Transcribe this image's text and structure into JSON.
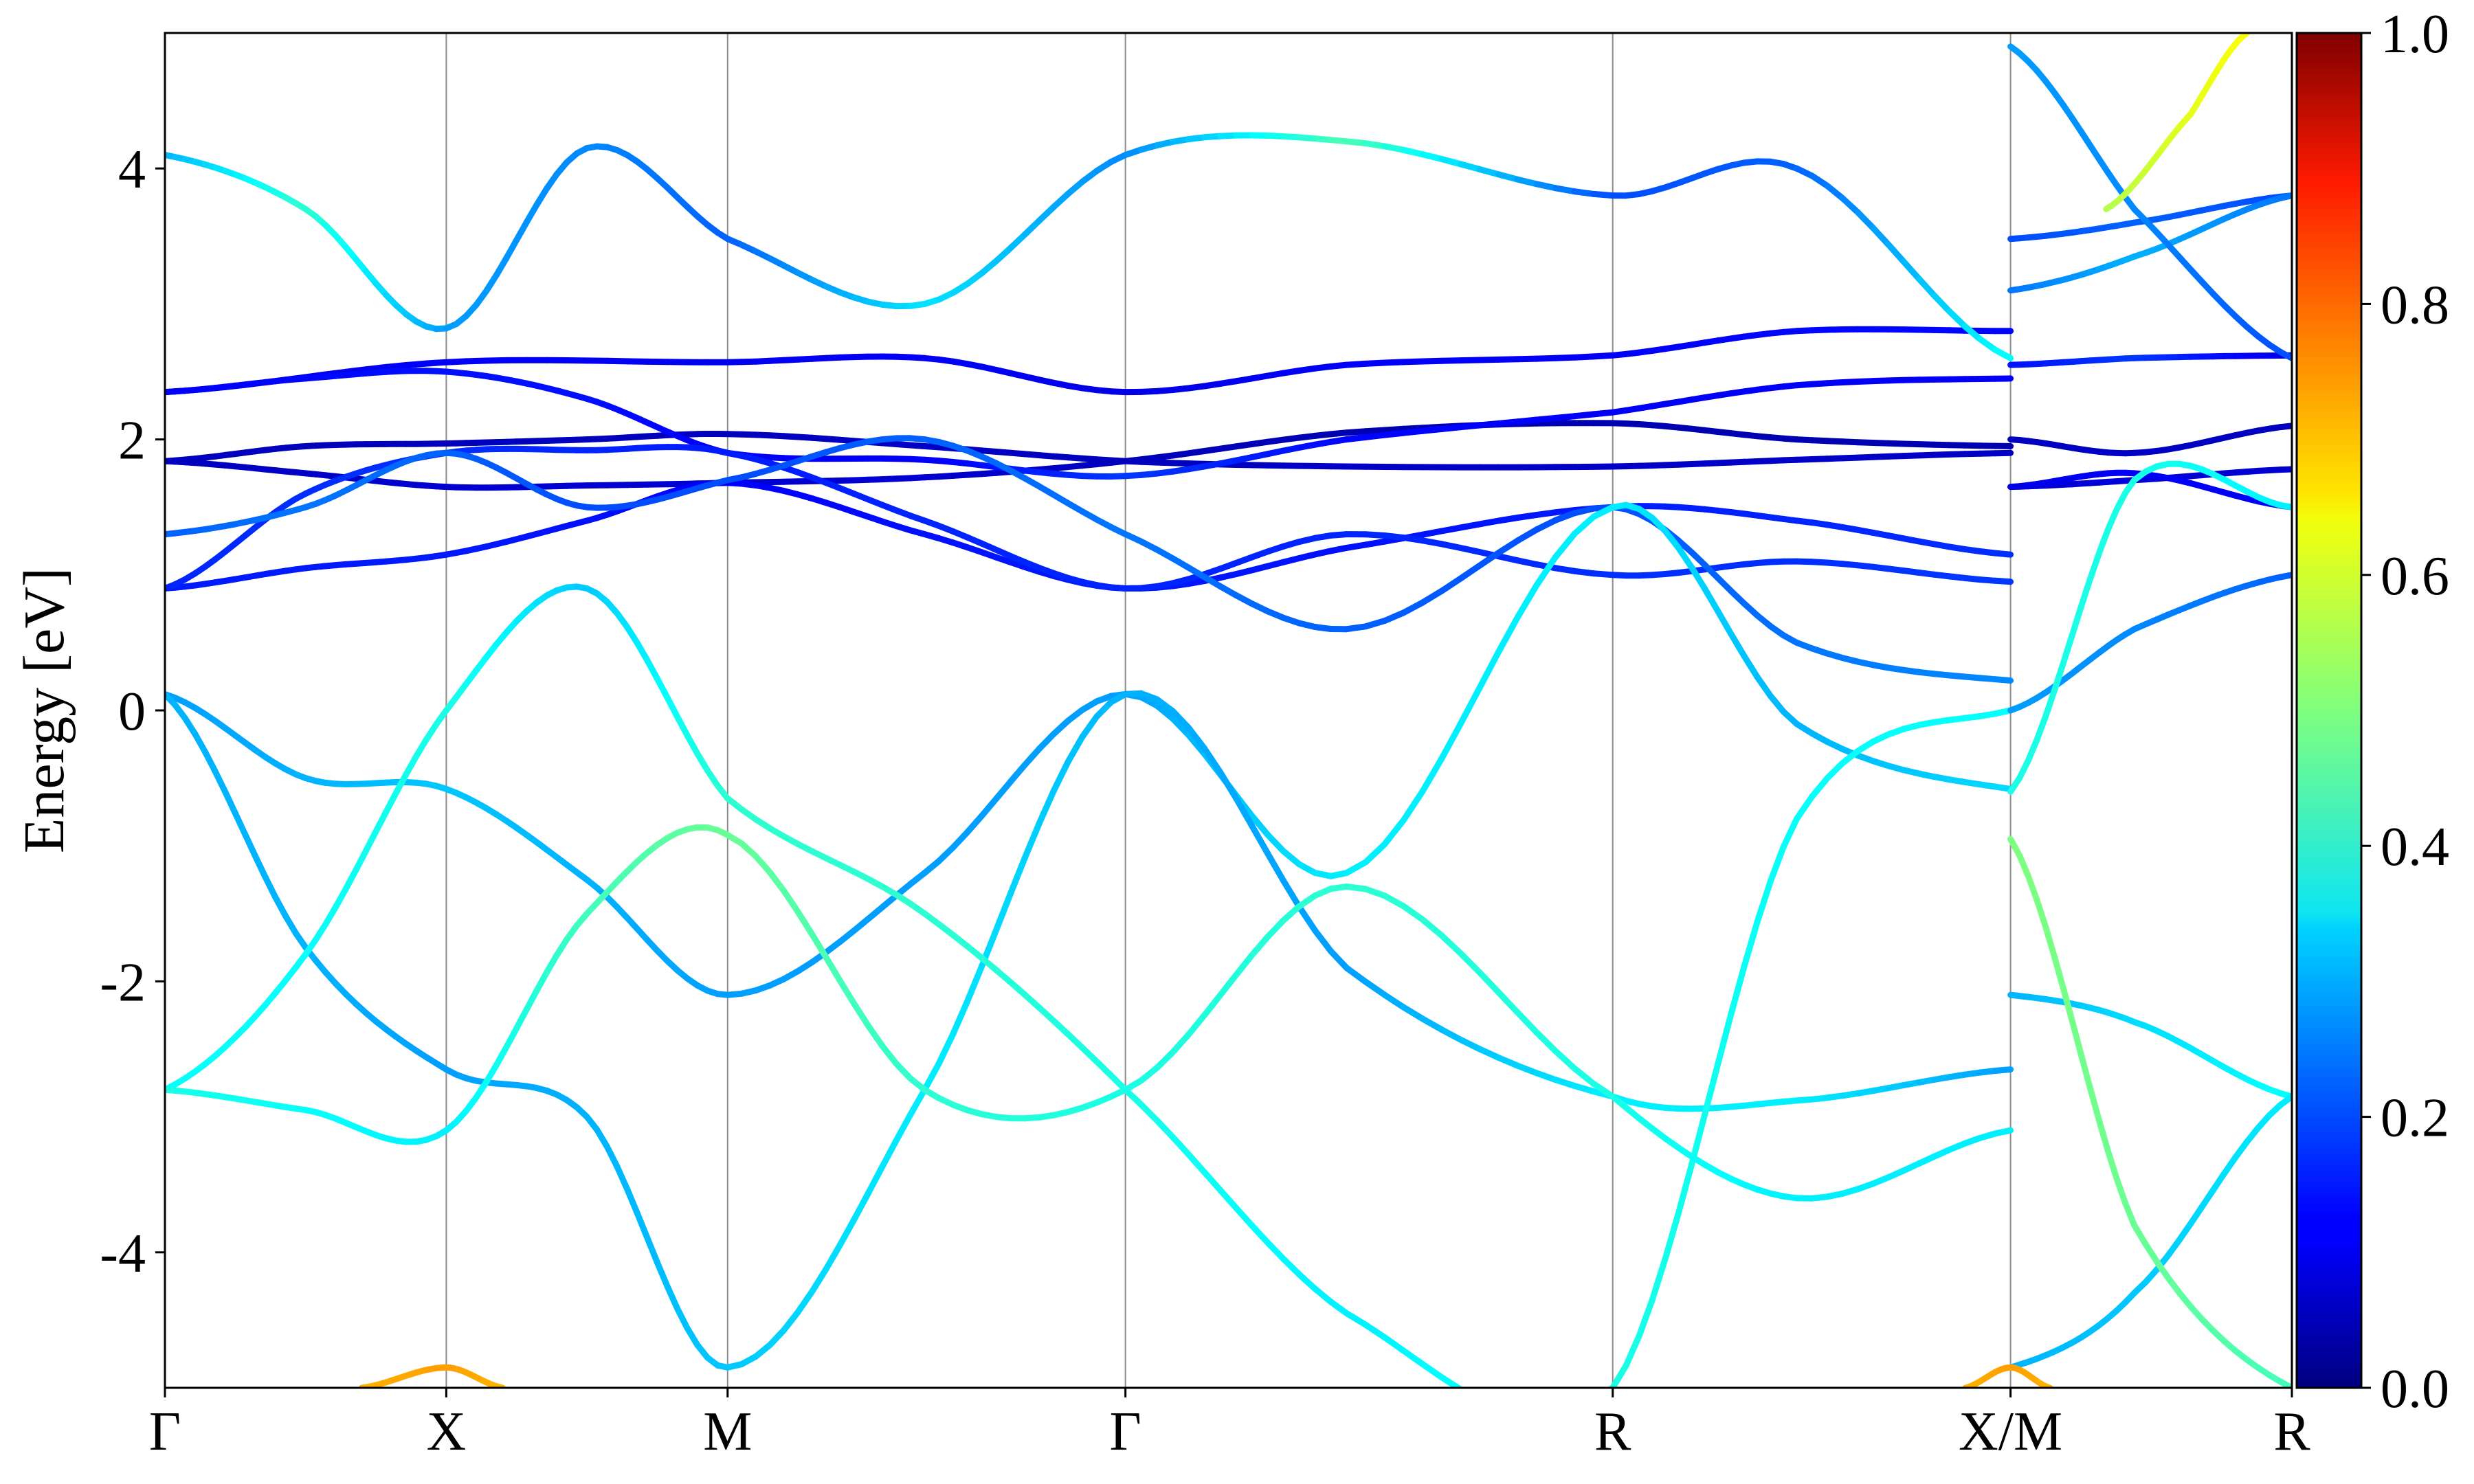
{
  "chart_data": {
    "type": "line",
    "subtype": "electronic band structure with color-mapped projection weight",
    "title": "",
    "xlabel": "",
    "ylabel": "Energy [eV]",
    "ylim": [
      -5,
      5
    ],
    "yticks": [
      -4,
      -2,
      0,
      2,
      4
    ],
    "xticks": [
      {
        "label": "Γ",
        "x": 0.0
      },
      {
        "label": "X",
        "x": 0.5
      },
      {
        "label": "M",
        "x": 1.0
      },
      {
        "label": "Γ",
        "x": 1.707
      },
      {
        "label": "R",
        "x": 2.573
      },
      {
        "label": "X/M",
        "x": 3.28
      },
      {
        "label": "R",
        "x": 3.78
      }
    ],
    "xlim": [
      0,
      3.78
    ],
    "grid": "vertical lines at high-symmetry points",
    "colorbar": {
      "colormap": "jet",
      "range": [
        0.0,
        1.0
      ],
      "ticks": [
        "0.0",
        "0.2",
        "0.4",
        "0.6",
        "0.8",
        "1.0"
      ]
    },
    "series": [
      {
        "points": [
          [
            0,
            1.84,
            0.06
          ],
          [
            0.25,
            1.75,
            0.07
          ],
          [
            0.5,
            1.65,
            0.08
          ],
          [
            0.75,
            1.66,
            0.08
          ],
          [
            1.0,
            1.68,
            0.08
          ],
          [
            1.35,
            1.72,
            0.08
          ],
          [
            1.707,
            1.84,
            0.06
          ],
          [
            2.1,
            2.05,
            0.05
          ],
          [
            2.573,
            2.12,
            0.05
          ],
          [
            2.9,
            2.0,
            0.05
          ],
          [
            3.28,
            1.95,
            0.05
          ]
        ]
      },
      {
        "points": [
          [
            0,
            1.84,
            0.06
          ],
          [
            0.25,
            1.95,
            0.06
          ],
          [
            0.5,
            1.97,
            0.06
          ],
          [
            0.75,
            2.0,
            0.06
          ],
          [
            1.0,
            2.04,
            0.06
          ],
          [
            1.35,
            1.95,
            0.07
          ],
          [
            1.707,
            1.84,
            0.06
          ],
          [
            2.1,
            1.8,
            0.07
          ],
          [
            2.573,
            1.8,
            0.07
          ],
          [
            2.9,
            1.85,
            0.07
          ],
          [
            3.28,
            1.9,
            0.07
          ]
        ]
      },
      {
        "points": [
          [
            0,
            2.35,
            0.1
          ],
          [
            0.5,
            2.57,
            0.12
          ],
          [
            1.0,
            2.57,
            0.11
          ],
          [
            1.35,
            2.6,
            0.12
          ],
          [
            1.707,
            2.35,
            0.1
          ],
          [
            2.1,
            2.55,
            0.12
          ],
          [
            2.573,
            2.62,
            0.12
          ],
          [
            2.9,
            2.8,
            0.13
          ],
          [
            3.28,
            2.8,
            0.13
          ]
        ]
      },
      {
        "points": [
          [
            0,
            2.35,
            0.12
          ],
          [
            0.25,
            2.45,
            0.13
          ],
          [
            0.5,
            2.5,
            0.14
          ],
          [
            0.75,
            2.3,
            0.14
          ],
          [
            1.0,
            1.9,
            0.12
          ],
          [
            1.35,
            1.85,
            0.12
          ],
          [
            1.707,
            1.73,
            0.18
          ],
          [
            2.1,
            2.0,
            0.13
          ],
          [
            2.573,
            2.2,
            0.12
          ],
          [
            2.9,
            2.4,
            0.12
          ],
          [
            3.28,
            2.45,
            0.12
          ]
        ]
      },
      {
        "points": [
          [
            0,
            0.9,
            0.15
          ],
          [
            0.25,
            1.05,
            0.15
          ],
          [
            0.5,
            1.15,
            0.15
          ],
          [
            0.75,
            1.4,
            0.14
          ],
          [
            1.0,
            1.68,
            0.12
          ],
          [
            1.35,
            1.3,
            0.14
          ],
          [
            1.707,
            0.9,
            0.15
          ],
          [
            2.1,
            1.2,
            0.14
          ],
          [
            2.573,
            1.5,
            0.15
          ],
          [
            2.9,
            1.4,
            0.16
          ],
          [
            3.28,
            1.15,
            0.17
          ]
        ]
      },
      {
        "points": [
          [
            0,
            0.9,
            0.16
          ],
          [
            0.25,
            1.6,
            0.17
          ],
          [
            0.5,
            1.9,
            0.17
          ],
          [
            0.75,
            1.92,
            0.16
          ],
          [
            1.0,
            1.9,
            0.15
          ],
          [
            1.35,
            1.4,
            0.16
          ],
          [
            1.707,
            0.9,
            0.16
          ],
          [
            2.1,
            1.3,
            0.16
          ],
          [
            2.573,
            1.0,
            0.17
          ],
          [
            2.9,
            1.1,
            0.17
          ],
          [
            3.28,
            0.95,
            0.18
          ]
        ]
      },
      {
        "points": [
          [
            0,
            1.3,
            0.22
          ],
          [
            0.25,
            1.5,
            0.24
          ],
          [
            0.5,
            1.9,
            0.22
          ],
          [
            0.75,
            1.5,
            0.2
          ],
          [
            1.0,
            1.7,
            0.2
          ],
          [
            1.35,
            2.0,
            0.22
          ],
          [
            1.707,
            1.3,
            0.24
          ],
          [
            2.1,
            0.6,
            0.22
          ],
          [
            2.573,
            1.5,
            0.2
          ],
          [
            2.9,
            0.5,
            0.24
          ],
          [
            3.28,
            0.22,
            0.26
          ]
        ]
      },
      {
        "points": [
          [
            0,
            0.12,
            0.28
          ],
          [
            0.25,
            -0.5,
            0.3
          ],
          [
            0.5,
            -0.58,
            0.32
          ],
          [
            0.75,
            -1.25,
            0.3
          ],
          [
            1.0,
            -2.1,
            0.28
          ],
          [
            1.35,
            -1.2,
            0.28
          ],
          [
            1.707,
            0.12,
            0.28
          ],
          [
            2.1,
            -1.2,
            0.36
          ],
          [
            2.573,
            1.5,
            0.36
          ],
          [
            2.9,
            -0.1,
            0.3
          ],
          [
            3.28,
            -0.58,
            0.34
          ]
        ]
      },
      {
        "points": [
          [
            0,
            0.12,
            0.3
          ],
          [
            0.25,
            -1.75,
            0.3
          ],
          [
            0.5,
            -2.65,
            0.28
          ],
          [
            0.75,
            -3.0,
            0.3
          ],
          [
            1.0,
            -4.85,
            0.32
          ],
          [
            1.35,
            -2.8,
            0.36
          ],
          [
            1.707,
            0.12,
            0.3
          ],
          [
            2.1,
            -1.9,
            0.28
          ],
          [
            2.573,
            -2.85,
            0.36
          ],
          [
            2.9,
            -2.88,
            0.36
          ],
          [
            3.28,
            -2.65,
            0.28
          ]
        ]
      },
      {
        "points": [
          [
            0,
            -2.8,
            0.38
          ],
          [
            0.25,
            -1.8,
            0.38
          ],
          [
            0.5,
            0.0,
            0.4
          ],
          [
            0.75,
            0.9,
            0.32
          ],
          [
            1.0,
            -0.65,
            0.42
          ],
          [
            1.35,
            -1.5,
            0.42
          ],
          [
            1.707,
            -2.8,
            0.4
          ],
          [
            2.1,
            -4.45,
            0.36
          ],
          [
            2.573,
            -5.0,
            0.4
          ],
          [
            2.9,
            -0.8,
            0.38
          ],
          [
            3.28,
            0.0,
            0.38
          ]
        ]
      },
      {
        "points": [
          [
            0,
            -2.8,
            0.4
          ],
          [
            0.25,
            -2.95,
            0.38
          ],
          [
            0.5,
            -3.1,
            0.36
          ],
          [
            0.75,
            -1.5,
            0.44
          ],
          [
            1.0,
            -0.92,
            0.48
          ],
          [
            1.35,
            -2.8,
            0.42
          ],
          [
            1.707,
            -2.8,
            0.4
          ],
          [
            2.1,
            -1.3,
            0.42
          ],
          [
            2.573,
            -2.85,
            0.4
          ],
          [
            2.9,
            -3.6,
            0.36
          ],
          [
            3.28,
            -3.1,
            0.36
          ]
        ]
      },
      {
        "points": [
          [
            0,
            4.1,
            0.3
          ],
          [
            0.25,
            3.7,
            0.42
          ],
          [
            0.5,
            2.82,
            0.28
          ],
          [
            0.75,
            4.15,
            0.26
          ],
          [
            1.0,
            3.48,
            0.22
          ],
          [
            1.35,
            3.0,
            0.35
          ],
          [
            1.707,
            4.1,
            0.26
          ],
          [
            2.1,
            4.2,
            0.45
          ],
          [
            2.573,
            3.8,
            0.2
          ],
          [
            2.9,
            4.0,
            0.22
          ],
          [
            3.28,
            2.6,
            0.38
          ]
        ]
      },
      {
        "points": [
          [
            3.28,
            2.55,
            0.14
          ],
          [
            3.5,
            2.6,
            0.18
          ],
          [
            3.78,
            2.62,
            0.1
          ]
        ]
      },
      {
        "points": [
          [
            3.28,
            3.48,
            0.2
          ],
          [
            3.5,
            3.6,
            0.22
          ],
          [
            3.78,
            3.8,
            0.2
          ]
        ]
      },
      {
        "points": [
          [
            3.28,
            3.1,
            0.24
          ],
          [
            3.5,
            3.35,
            0.3
          ],
          [
            3.78,
            3.8,
            0.24
          ]
        ]
      },
      {
        "points": [
          [
            3.28,
            2.0,
            0.06
          ],
          [
            3.5,
            1.9,
            0.07
          ],
          [
            3.78,
            2.1,
            0.06
          ]
        ]
      },
      {
        "points": [
          [
            3.28,
            1.65,
            0.08
          ],
          [
            3.5,
            1.7,
            0.09
          ],
          [
            3.78,
            1.78,
            0.08
          ]
        ]
      },
      {
        "points": [
          [
            3.28,
            1.65,
            0.1
          ],
          [
            3.5,
            1.75,
            0.12
          ],
          [
            3.78,
            1.5,
            0.12
          ]
        ]
      },
      {
        "points": [
          [
            3.28,
            0.0,
            0.28
          ],
          [
            3.5,
            0.6,
            0.26
          ],
          [
            3.78,
            1.0,
            0.22
          ]
        ]
      },
      {
        "points": [
          [
            3.28,
            -0.6,
            0.4
          ],
          [
            3.5,
            1.7,
            0.4
          ],
          [
            3.78,
            1.5,
            0.36
          ]
        ]
      },
      {
        "points": [
          [
            3.28,
            -2.1,
            0.3
          ],
          [
            3.5,
            -2.3,
            0.34
          ],
          [
            3.78,
            -2.85,
            0.38
          ]
        ]
      },
      {
        "points": [
          [
            3.28,
            -4.85,
            0.3
          ],
          [
            3.5,
            -4.3,
            0.32
          ],
          [
            3.78,
            -2.85,
            0.36
          ]
        ]
      },
      {
        "points": [
          [
            3.28,
            -0.95,
            0.5
          ],
          [
            3.5,
            -3.8,
            0.48
          ],
          [
            3.78,
            -5.0,
            0.44
          ]
        ]
      },
      {
        "points": [
          [
            3.28,
            4.9,
            0.28
          ],
          [
            3.5,
            3.7,
            0.26
          ],
          [
            3.78,
            2.6,
            0.2
          ]
        ]
      },
      {
        "points": [
          [
            3.45,
            3.7,
            0.55
          ],
          [
            3.6,
            4.4,
            0.6
          ],
          [
            3.7,
            5.0,
            0.62
          ]
        ]
      },
      {
        "points": [
          [
            0.35,
            -5.0,
            0.7
          ],
          [
            0.5,
            -4.85,
            0.72
          ],
          [
            0.6,
            -5.0,
            0.7
          ]
        ]
      },
      {
        "points": [
          [
            3.2,
            -5.0,
            0.7
          ],
          [
            3.28,
            -4.85,
            0.72
          ],
          [
            3.35,
            -5.0,
            0.7
          ]
        ]
      }
    ]
  }
}
